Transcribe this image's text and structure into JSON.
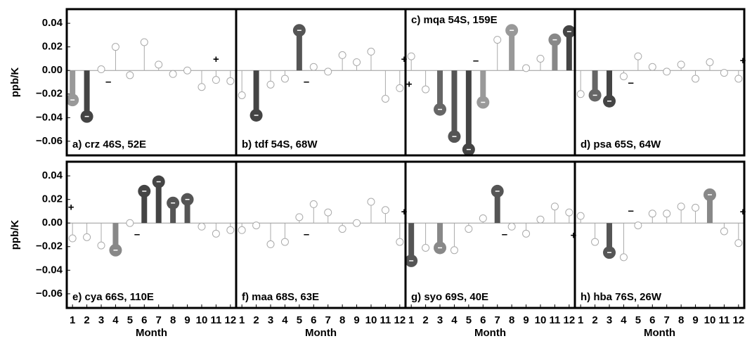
{
  "chart_data": [
    {
      "type": "stem",
      "title": "a) crz 46S, 52E",
      "title_position": "bottom",
      "ylabel": "ppb/K",
      "x": [
        1,
        2,
        3,
        4,
        5,
        6,
        7,
        8,
        9,
        10,
        11,
        12
      ],
      "values": [
        -0.025,
        -0.039,
        0.001,
        0.02,
        -0.004,
        0.024,
        0.005,
        -0.003,
        0.0,
        -0.014,
        -0.008,
        -0.009
      ],
      "markers": [
        "filled",
        "filled",
        "open",
        "open",
        "open",
        "open",
        "open",
        "open",
        "open",
        "open",
        "open",
        "open"
      ],
      "colors": [
        "#999999",
        "#444444",
        "#aaaaaa",
        "#aaaaaa",
        "#aaaaaa",
        "#aaaaaa",
        "#aaaaaa",
        "#aaaaaa",
        "#aaaaaa",
        "#aaaaaa",
        "#aaaaaa",
        "#aaaaaa"
      ],
      "annotations": [
        {
          "text": "–",
          "x": 3.5,
          "y": -0.01
        },
        {
          "text": "+",
          "x": 11,
          "y": 0.009
        }
      ],
      "xlim": [
        0.6,
        12.4
      ],
      "ylim": [
        -0.072,
        0.052
      ],
      "yticks": [
        {
          "value": -0.06,
          "label": "−0.06"
        },
        {
          "value": -0.04,
          "label": "−0.04"
        },
        {
          "value": -0.02,
          "label": "−0.02"
        },
        {
          "value": 0,
          "label": "0.00"
        },
        {
          "value": 0.02,
          "label": "0.02"
        },
        {
          "value": 0.04,
          "label": "0.04"
        }
      ]
    },
    {
      "type": "stem",
      "title": "b) tdf 54S, 68W",
      "title_position": "bottom",
      "x": [
        1,
        2,
        3,
        4,
        5,
        6,
        7,
        8,
        9,
        10,
        11,
        12
      ],
      "values": [
        -0.021,
        -0.038,
        -0.012,
        -0.007,
        0.034,
        0.003,
        -0.001,
        0.013,
        0.007,
        0.016,
        -0.024,
        -0.015
      ],
      "markers": [
        "open",
        "filled",
        "open",
        "open",
        "filled",
        "open",
        "open",
        "open",
        "open",
        "open",
        "open",
        "open"
      ],
      "colors": [
        "#aaaaaa",
        "#444444",
        "#aaaaaa",
        "#aaaaaa",
        "#555555",
        "#aaaaaa",
        "#aaaaaa",
        "#aaaaaa",
        "#aaaaaa",
        "#aaaaaa",
        "#aaaaaa",
        "#aaaaaa"
      ],
      "annotations": [
        {
          "text": "–",
          "x": 5.5,
          "y": -0.01
        },
        {
          "text": "+",
          "x": 12.3,
          "y": 0.009
        }
      ],
      "xlim": [
        0.6,
        12.4
      ],
      "ylim": [
        -0.072,
        0.052
      ]
    },
    {
      "type": "stem",
      "title": "c) mqa 54S, 159E",
      "title_position": "top",
      "x": [
        1,
        2,
        3,
        4,
        5,
        6,
        7,
        8,
        9,
        10,
        11,
        12
      ],
      "values": [
        0.012,
        -0.016,
        -0.033,
        -0.056,
        -0.067,
        -0.027,
        0.026,
        0.034,
        0.002,
        0.01,
        0.026,
        0.033
      ],
      "markers": [
        "open",
        "open",
        "filled",
        "filled",
        "filled",
        "filled",
        "open",
        "filled",
        "open",
        "open",
        "filled",
        "filled"
      ],
      "colors": [
        "#aaaaaa",
        "#aaaaaa",
        "#666666",
        "#555555",
        "#444444",
        "#999999",
        "#aaaaaa",
        "#999999",
        "#aaaaaa",
        "#aaaaaa",
        "#888888",
        "#444444"
      ],
      "annotations": [
        {
          "text": "+",
          "x": 0.85,
          "y": -0.012
        },
        {
          "text": "–",
          "x": 5.5,
          "y": 0.008
        }
      ],
      "xlim": [
        0.6,
        12.4
      ],
      "ylim": [
        -0.072,
        0.052
      ]
    },
    {
      "type": "stem",
      "title": "d) psa 65S, 64W",
      "title_position": "bottom",
      "x": [
        1,
        2,
        3,
        4,
        5,
        6,
        7,
        8,
        9,
        10,
        11,
        12
      ],
      "values": [
        -0.02,
        -0.021,
        -0.026,
        -0.005,
        0.012,
        0.003,
        -0.001,
        0.005,
        -0.007,
        0.007,
        -0.002,
        -0.007
      ],
      "markers": [
        "open",
        "filled",
        "filled",
        "open",
        "open",
        "open",
        "open",
        "open",
        "open",
        "open",
        "open",
        "open"
      ],
      "colors": [
        "#aaaaaa",
        "#666666",
        "#444444",
        "#aaaaaa",
        "#aaaaaa",
        "#aaaaaa",
        "#aaaaaa",
        "#aaaaaa",
        "#aaaaaa",
        "#aaaaaa",
        "#aaaaaa",
        "#aaaaaa"
      ],
      "annotations": [
        {
          "text": "–",
          "x": 4.5,
          "y": -0.011
        },
        {
          "text": "+",
          "x": 12.3,
          "y": 0.008
        }
      ],
      "xlim": [
        0.6,
        12.4
      ],
      "ylim": [
        -0.072,
        0.052
      ]
    },
    {
      "type": "stem",
      "title": "e) cya 66S, 110E",
      "title_position": "bottom",
      "ylabel": "ppb/K",
      "xlabel": "Month",
      "x": [
        1,
        2,
        3,
        4,
        5,
        6,
        7,
        8,
        9,
        10,
        11,
        12
      ],
      "values": [
        -0.013,
        -0.012,
        -0.019,
        -0.023,
        0.0,
        0.027,
        0.035,
        0.017,
        0.02,
        -0.003,
        -0.009,
        -0.006
      ],
      "markers": [
        "open",
        "open",
        "open",
        "filled",
        "open",
        "filled",
        "filled",
        "filled",
        "filled",
        "open",
        "open",
        "open"
      ],
      "colors": [
        "#aaaaaa",
        "#aaaaaa",
        "#aaaaaa",
        "#888888",
        "#aaaaaa",
        "#444444",
        "#444444",
        "#555555",
        "#555555",
        "#aaaaaa",
        "#aaaaaa",
        "#aaaaaa"
      ],
      "annotations": [
        {
          "text": "+",
          "x": 0.9,
          "y": 0.013
        },
        {
          "text": "–",
          "x": 5.5,
          "y": -0.01
        }
      ],
      "xlim": [
        0.6,
        12.4
      ],
      "ylim": [
        -0.072,
        0.052
      ],
      "xticks": [
        1,
        2,
        3,
        4,
        5,
        6,
        7,
        8,
        9,
        10,
        11,
        12
      ],
      "yticks": [
        {
          "value": -0.06,
          "label": "−0.06"
        },
        {
          "value": -0.04,
          "label": "−0.04"
        },
        {
          "value": -0.02,
          "label": "−0.02"
        },
        {
          "value": 0,
          "label": "0.00"
        },
        {
          "value": 0.02,
          "label": "0.02"
        },
        {
          "value": 0.04,
          "label": "0.04"
        }
      ]
    },
    {
      "type": "stem",
      "title": "f) maa 68S, 63E",
      "title_position": "bottom",
      "xlabel": "Month",
      "x": [
        1,
        2,
        3,
        4,
        5,
        6,
        7,
        8,
        9,
        10,
        11,
        12
      ],
      "values": [
        -0.006,
        -0.002,
        -0.018,
        -0.016,
        0.005,
        0.016,
        0.009,
        -0.005,
        0.0,
        0.018,
        0.011,
        -0.016
      ],
      "markers": [
        "open",
        "open",
        "open",
        "open",
        "open",
        "open",
        "open",
        "open",
        "open",
        "open",
        "open",
        "open"
      ],
      "colors": [
        "#aaaaaa",
        "#aaaaaa",
        "#aaaaaa",
        "#aaaaaa",
        "#aaaaaa",
        "#aaaaaa",
        "#aaaaaa",
        "#aaaaaa",
        "#aaaaaa",
        "#aaaaaa",
        "#aaaaaa",
        "#aaaaaa"
      ],
      "annotations": [
        {
          "text": "–",
          "x": 5.5,
          "y": -0.01
        },
        {
          "text": "+",
          "x": 12.3,
          "y": 0.009
        }
      ],
      "xlim": [
        0.6,
        12.4
      ],
      "ylim": [
        -0.072,
        0.052
      ],
      "xticks": [
        1,
        2,
        3,
        4,
        5,
        6,
        7,
        8,
        9,
        10,
        11,
        12
      ]
    },
    {
      "type": "stem",
      "title": "g) syo 69S, 40E",
      "title_position": "bottom",
      "xlabel": "Month",
      "x": [
        1,
        2,
        3,
        4,
        5,
        6,
        7,
        8,
        9,
        10,
        11,
        12
      ],
      "values": [
        -0.032,
        -0.021,
        -0.021,
        -0.023,
        -0.005,
        0.004,
        0.027,
        -0.003,
        -0.009,
        0.003,
        0.014,
        0.009
      ],
      "markers": [
        "filled",
        "open",
        "filled",
        "open",
        "open",
        "open",
        "filled",
        "open",
        "open",
        "open",
        "open",
        "open"
      ],
      "colors": [
        "#555555",
        "#aaaaaa",
        "#888888",
        "#aaaaaa",
        "#aaaaaa",
        "#aaaaaa",
        "#555555",
        "#aaaaaa",
        "#aaaaaa",
        "#aaaaaa",
        "#aaaaaa",
        "#aaaaaa"
      ],
      "annotations": [
        {
          "text": "–",
          "x": 7.5,
          "y": -0.01
        },
        {
          "text": "+",
          "x": 12.3,
          "y": -0.011
        }
      ],
      "xlim": [
        0.6,
        12.4
      ],
      "ylim": [
        -0.072,
        0.052
      ],
      "xticks": [
        1,
        2,
        3,
        4,
        5,
        6,
        7,
        8,
        9,
        10,
        11,
        12
      ]
    },
    {
      "type": "stem",
      "title": "h) hba 76S, 26W",
      "title_position": "bottom",
      "xlabel": "Month",
      "x": [
        1,
        2,
        3,
        4,
        5,
        6,
        7,
        8,
        9,
        10,
        11,
        12
      ],
      "values": [
        0.006,
        -0.016,
        -0.025,
        -0.029,
        -0.002,
        0.008,
        0.008,
        0.014,
        0.013,
        0.024,
        -0.007,
        -0.017
      ],
      "markers": [
        "open",
        "open",
        "filled",
        "open",
        "open",
        "open",
        "open",
        "open",
        "open",
        "filled",
        "open",
        "open"
      ],
      "colors": [
        "#aaaaaa",
        "#aaaaaa",
        "#555555",
        "#aaaaaa",
        "#aaaaaa",
        "#aaaaaa",
        "#aaaaaa",
        "#aaaaaa",
        "#aaaaaa",
        "#888888",
        "#aaaaaa",
        "#aaaaaa"
      ],
      "annotations": [
        {
          "text": "–",
          "x": 4.5,
          "y": 0.01
        },
        {
          "text": "+",
          "x": 12.3,
          "y": 0.009
        }
      ],
      "xlim": [
        0.6,
        12.4
      ],
      "ylim": [
        -0.072,
        0.052
      ],
      "xticks": [
        1,
        2,
        3,
        4,
        5,
        6,
        7,
        8,
        9,
        10,
        11,
        12
      ]
    }
  ]
}
